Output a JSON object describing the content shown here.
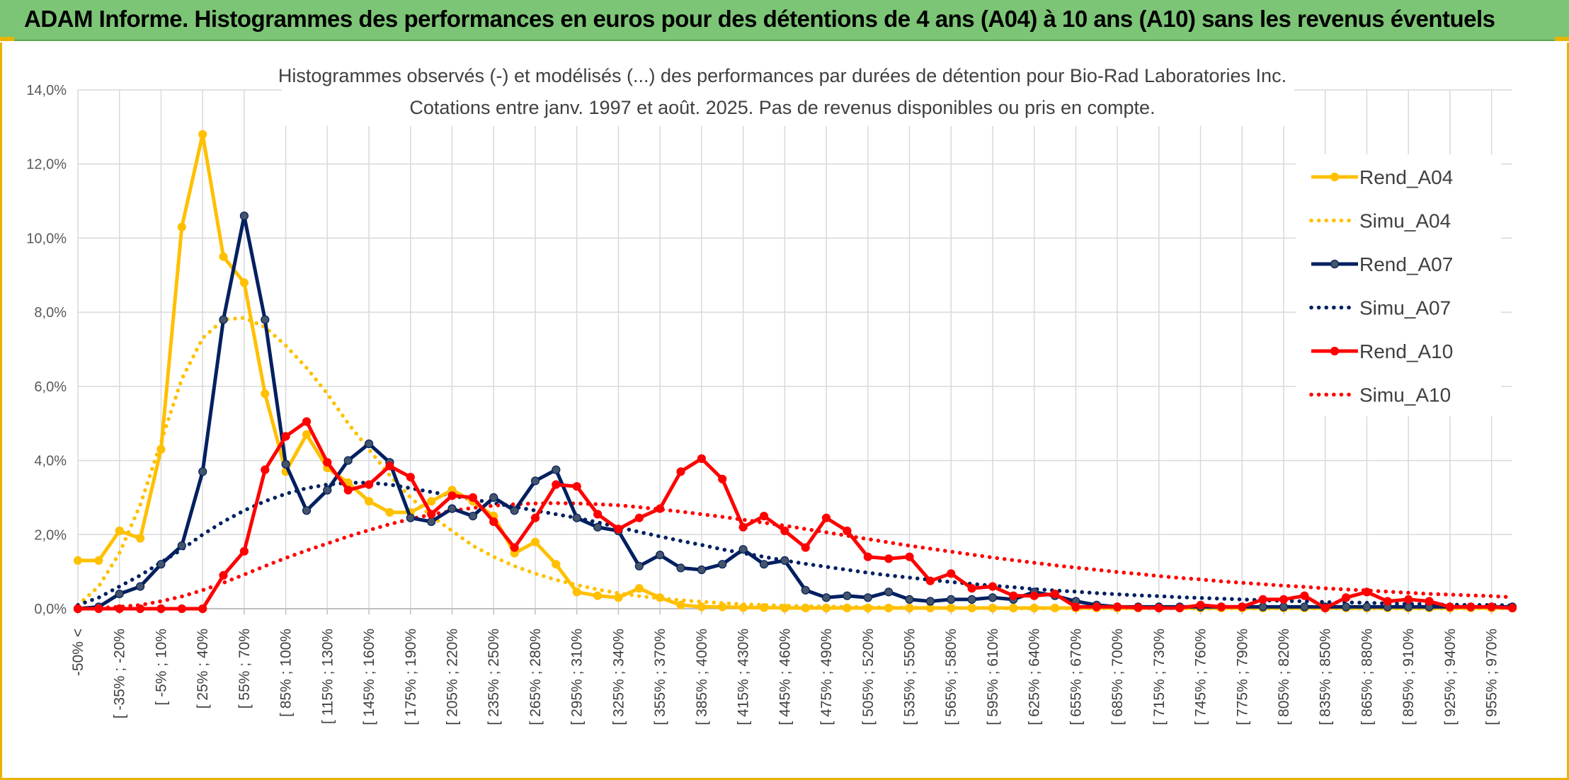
{
  "banner": {
    "title": "ADAM Informe. Histogrammes des performances en euros pour des détentions de 4 ans (A04) à 10 ans (A10) sans les revenus éventuels"
  },
  "chart_data": {
    "type": "line",
    "title_line1": "Histogrammes observés (-) et modélisés (...) des performances par durées de détention pour Bio-Rad Laboratories Inc.",
    "title_line2": "Cotations entre janv. 1997 et août. 2025. Pas de revenus disponibles ou pris en compte.",
    "ylim": [
      0,
      14
    ],
    "y_ticks": [
      "0,0%",
      "2,0%",
      "4,0%",
      "6,0%",
      "8,0%",
      "10,0%",
      "12,0%",
      "14,0%"
    ],
    "x_tick_labels": [
      "-50% <",
      "[ -35% ; -20%",
      "[ -5% ; 10%",
      "[ 25% ; 40%",
      "[ 55% ; 70%",
      "[ 85% ; 100%",
      "[ 115% ; 130%",
      "[ 145% ; 160%",
      "[ 175% ; 190%",
      "[ 205% ; 220%",
      "[ 235% ; 250%",
      "[ 265% ; 280%",
      "[ 295% ; 310%",
      "[ 325% ; 340%",
      "[ 355% ; 370%",
      "[ 385% ; 400%",
      "[ 415% ; 430%",
      "[ 445% ; 460%",
      "[ 475% ; 490%",
      "[ 505% ; 520%",
      "[ 535% ; 550%",
      "[ 565% ; 580%",
      "[ 595% ; 610%",
      "[ 625% ; 640%",
      "[ 655% ; 670%",
      "[ 685% ; 700%",
      "[ 715% ; 730%",
      "[ 745% ; 760%",
      "[ 775% ; 790%",
      "[ 805% ; 820%",
      "[ 835% ; 850%",
      "[ 865% ; 880%",
      "[ 895% ; 910%",
      "[ 925% ; 940%",
      "[ 955% ; 970%"
    ],
    "grid": true,
    "legend_position": "right",
    "series": [
      {
        "name": "Rend_A04",
        "style": "solid",
        "color": "#ffc000",
        "values": [
          1.3,
          1.3,
          2.1,
          1.9,
          4.3,
          10.3,
          12.8,
          9.5,
          8.8,
          5.8,
          3.7,
          4.7,
          3.8,
          3.4,
          2.9,
          2.6,
          2.6,
          2.9,
          3.2,
          2.9,
          2.5,
          1.5,
          1.8,
          1.2,
          0.45,
          0.35,
          0.3,
          0.55,
          0.3,
          0.1,
          0.05,
          0.05,
          0.03,
          0.03,
          0.02,
          0.02,
          0.02,
          0.02,
          0.02,
          0.02,
          0.02,
          0.02,
          0.02,
          0.02,
          0.02,
          0.02,
          0.02,
          0.02,
          0.02,
          0.02,
          0.02,
          0.02,
          0.02,
          0.02,
          0.02,
          0.02,
          0.02,
          0.02,
          0.02,
          0.02,
          0.02,
          0.02,
          0.02,
          0.02,
          0.02,
          0.02,
          0.02,
          0.02,
          0.02,
          0.02
        ]
      },
      {
        "name": "Simu_A04",
        "style": "dotted",
        "color": "#ffc000",
        "values": [
          0.1,
          0.6,
          1.5,
          2.8,
          4.5,
          6.2,
          7.3,
          7.8,
          7.85,
          7.6,
          7.1,
          6.5,
          5.8,
          5.0,
          4.3,
          3.6,
          3.0,
          2.5,
          2.1,
          1.7,
          1.4,
          1.15,
          0.95,
          0.78,
          0.64,
          0.52,
          0.42,
          0.34,
          0.28,
          0.23,
          0.19,
          0.15,
          0.12,
          0.1,
          0.08,
          0.07,
          0.06,
          0.05,
          0.04,
          0.03,
          0.03,
          0.02,
          0.02,
          0.02,
          0.02,
          0.01,
          0.01,
          0.01,
          0.01,
          0.01,
          0.01,
          0.01,
          0.01,
          0.01,
          0.01,
          0.01,
          0.01,
          0.01,
          0.01,
          0.01,
          0.01,
          0.01,
          0.01,
          0.01,
          0.01,
          0.01,
          0.01,
          0.01,
          0.01,
          0.01
        ]
      },
      {
        "name": "Rend_A07",
        "style": "solid",
        "color": "#002060",
        "values": [
          0.0,
          0.05,
          0.4,
          0.6,
          1.2,
          1.7,
          3.7,
          7.8,
          10.6,
          7.8,
          3.9,
          2.65,
          3.2,
          4.0,
          4.45,
          3.95,
          2.45,
          2.35,
          2.7,
          2.5,
          3.0,
          2.65,
          3.45,
          3.75,
          2.45,
          2.2,
          2.1,
          1.15,
          1.45,
          1.1,
          1.05,
          1.2,
          1.6,
          1.2,
          1.3,
          0.5,
          0.3,
          0.35,
          0.3,
          0.45,
          0.25,
          0.2,
          0.25,
          0.25,
          0.3,
          0.25,
          0.45,
          0.35,
          0.2,
          0.1,
          0.05,
          0.05,
          0.05,
          0.05,
          0.05,
          0.05,
          0.05,
          0.05,
          0.05,
          0.05,
          0.05,
          0.05,
          0.05,
          0.05,
          0.05,
          0.05,
          0.05,
          0.05,
          0.05,
          0.05
        ]
      },
      {
        "name": "Simu_A07",
        "style": "dotted",
        "color": "#002060",
        "values": [
          0.1,
          0.3,
          0.6,
          0.9,
          1.25,
          1.6,
          2.0,
          2.35,
          2.65,
          2.9,
          3.1,
          3.25,
          3.35,
          3.4,
          3.4,
          3.35,
          3.25,
          3.15,
          3.05,
          2.95,
          2.85,
          2.75,
          2.65,
          2.55,
          2.45,
          2.33,
          2.2,
          2.07,
          1.95,
          1.83,
          1.72,
          1.6,
          1.5,
          1.4,
          1.3,
          1.21,
          1.13,
          1.05,
          0.97,
          0.9,
          0.84,
          0.78,
          0.72,
          0.67,
          0.62,
          0.58,
          0.53,
          0.49,
          0.46,
          0.42,
          0.39,
          0.36,
          0.34,
          0.31,
          0.29,
          0.27,
          0.25,
          0.23,
          0.21,
          0.2,
          0.18,
          0.17,
          0.16,
          0.14,
          0.13,
          0.12,
          0.11,
          0.1,
          0.1,
          0.09
        ]
      },
      {
        "name": "Rend_A10",
        "style": "solid",
        "color": "#ff0000",
        "values": [
          0.0,
          0.0,
          0.0,
          0.0,
          0.0,
          0.0,
          0.0,
          0.9,
          1.55,
          3.75,
          4.65,
          5.05,
          3.95,
          3.2,
          3.35,
          3.85,
          3.55,
          2.55,
          3.05,
          3.0,
          2.35,
          1.65,
          2.45,
          3.35,
          3.3,
          2.55,
          2.15,
          2.45,
          2.7,
          3.7,
          4.05,
          3.5,
          2.2,
          2.5,
          2.1,
          1.65,
          2.45,
          2.1,
          1.4,
          1.35,
          1.4,
          0.75,
          0.95,
          0.55,
          0.6,
          0.35,
          0.35,
          0.4,
          0.05,
          0.05,
          0.05,
          0.03,
          0.02,
          0.02,
          0.1,
          0.05,
          0.05,
          0.25,
          0.25,
          0.35,
          0.02,
          0.3,
          0.45,
          0.2,
          0.25,
          0.2,
          0.05,
          0.05,
          0.05,
          0.02
        ]
      },
      {
        "name": "Simu_A10",
        "style": "dotted",
        "color": "#ff0000",
        "values": [
          0.0,
          0.02,
          0.05,
          0.1,
          0.2,
          0.33,
          0.5,
          0.7,
          0.92,
          1.15,
          1.37,
          1.57,
          1.76,
          1.95,
          2.12,
          2.28,
          2.42,
          2.54,
          2.64,
          2.72,
          2.78,
          2.82,
          2.84,
          2.85,
          2.84,
          2.82,
          2.79,
          2.74,
          2.68,
          2.62,
          2.55,
          2.48,
          2.4,
          2.32,
          2.24,
          2.15,
          2.06,
          1.97,
          1.88,
          1.79,
          1.7,
          1.62,
          1.54,
          1.46,
          1.38,
          1.31,
          1.24,
          1.17,
          1.11,
          1.05,
          0.99,
          0.94,
          0.88,
          0.83,
          0.79,
          0.74,
          0.7,
          0.66,
          0.62,
          0.59,
          0.55,
          0.52,
          0.49,
          0.46,
          0.43,
          0.4,
          0.38,
          0.36,
          0.34,
          0.31
        ]
      }
    ]
  }
}
